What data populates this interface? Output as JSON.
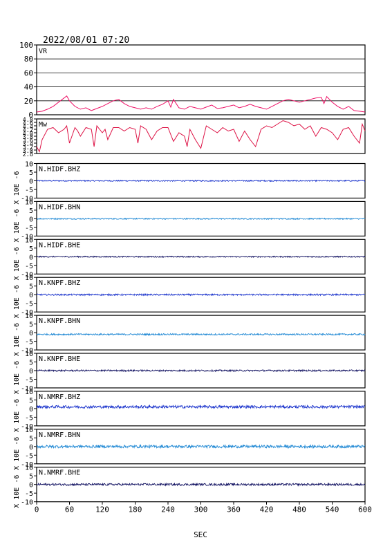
{
  "chart_data": {
    "type": "line",
    "title": "2022/08/01 07:20",
    "xlabel": "SEC",
    "xlim": [
      0,
      600
    ],
    "x_ticks": [
      "0",
      "60",
      "120",
      "180",
      "240",
      "300",
      "360",
      "420",
      "480",
      "540",
      "600"
    ],
    "side_label": "X 10E -6",
    "vr": {
      "label": "VR",
      "ylim": [
        0,
        100
      ],
      "ticks": [
        "100",
        "80",
        "60",
        "40",
        "20",
        "0"
      ],
      "color": "#ee1166",
      "x": [
        0,
        10,
        20,
        30,
        40,
        50,
        55,
        60,
        70,
        80,
        90,
        100,
        110,
        120,
        130,
        140,
        150,
        160,
        170,
        180,
        190,
        200,
        210,
        220,
        230,
        240,
        245,
        250,
        260,
        270,
        280,
        290,
        300,
        310,
        320,
        330,
        340,
        350,
        360,
        370,
        380,
        390,
        400,
        410,
        420,
        430,
        440,
        450,
        460,
        470,
        480,
        490,
        500,
        510,
        520,
        525,
        530,
        540,
        550,
        560,
        570,
        580,
        590,
        600
      ],
      "y": [
        4,
        5,
        8,
        12,
        18,
        24,
        27,
        20,
        12,
        8,
        10,
        6,
        9,
        12,
        16,
        20,
        22,
        16,
        12,
        10,
        8,
        10,
        8,
        12,
        15,
        20,
        11,
        22,
        10,
        8,
        12,
        10,
        8,
        11,
        14,
        9,
        10,
        12,
        14,
        10,
        12,
        15,
        12,
        10,
        8,
        12,
        16,
        20,
        22,
        20,
        18,
        20,
        22,
        24,
        25,
        16,
        26,
        18,
        12,
        8,
        12,
        6,
        5,
        4
      ]
    },
    "mw": {
      "label": "Mw",
      "ylim": [
        2.8,
        4.8
      ],
      "ticks": [
        "4.8",
        "4.6",
        "4.4",
        "4.2",
        "4.0",
        "3.8",
        "3.6",
        "3.4",
        "3.2",
        "3.0",
        "2.8"
      ],
      "color": "#dd1144",
      "x": [
        0,
        5,
        10,
        20,
        30,
        40,
        50,
        55,
        60,
        70,
        75,
        80,
        90,
        100,
        105,
        110,
        120,
        125,
        130,
        140,
        150,
        160,
        170,
        180,
        185,
        190,
        200,
        210,
        220,
        230,
        240,
        250,
        260,
        270,
        275,
        280,
        290,
        300,
        310,
        320,
        330,
        340,
        350,
        360,
        370,
        380,
        390,
        400,
        410,
        420,
        430,
        440,
        450,
        460,
        470,
        480,
        490,
        500,
        510,
        520,
        530,
        540,
        550,
        560,
        570,
        580,
        590,
        595,
        600
      ],
      "y": [
        3.2,
        2.9,
        3.6,
        4.2,
        4.3,
        4.0,
        4.2,
        4.4,
        3.4,
        4.3,
        4.1,
        3.8,
        4.3,
        4.2,
        3.2,
        4.4,
        4.0,
        4.2,
        3.6,
        4.3,
        4.3,
        4.1,
        4.3,
        4.2,
        3.4,
        4.4,
        4.2,
        3.6,
        4.1,
        4.3,
        4.3,
        3.5,
        4.0,
        3.8,
        3.2,
        4.2,
        3.6,
        3.1,
        4.4,
        4.2,
        4.0,
        4.3,
        4.1,
        4.2,
        3.5,
        4.1,
        3.6,
        3.2,
        4.2,
        4.4,
        4.3,
        4.5,
        4.7,
        4.6,
        4.4,
        4.5,
        4.2,
        4.4,
        3.8,
        4.3,
        4.2,
        4.0,
        3.6,
        4.2,
        4.3,
        3.8,
        3.4,
        4.5,
        4.1
      ]
    },
    "waveforms": {
      "ylim": [
        -10,
        10
      ],
      "ticks": [
        "10",
        "5",
        "0",
        "-5",
        "-10"
      ],
      "panels": [
        {
          "name": "N.HIDF.BHZ",
          "color": "#1a33cc",
          "amp": 0.35,
          "offset": 0.0
        },
        {
          "name": "N.HIDF.BHN",
          "color": "#1f88d4",
          "amp": 0.35,
          "offset": 0.0
        },
        {
          "name": "N.HIDF.BHE",
          "color": "#101060",
          "amp": 0.35,
          "offset": 0.0
        },
        {
          "name": "N.KNPF.BHZ",
          "color": "#1a33cc",
          "amp": 0.45,
          "offset": 0.0
        },
        {
          "name": "N.KNPF.BHN",
          "color": "#1f88d4",
          "amp": 0.45,
          "offset": -1.0
        },
        {
          "name": "N.KNPF.BHE",
          "color": "#101060",
          "amp": 0.45,
          "offset": 0.0
        },
        {
          "name": "N.NMRF.BHZ",
          "color": "#1a33cc",
          "amp": 0.8,
          "offset": 1.0
        },
        {
          "name": "N.NMRF.BHN",
          "color": "#1f88d4",
          "amp": 0.8,
          "offset": 0.0
        },
        {
          "name": "N.NMRF.BHE",
          "color": "#101060",
          "amp": 0.6,
          "offset": 0.0
        }
      ]
    }
  }
}
